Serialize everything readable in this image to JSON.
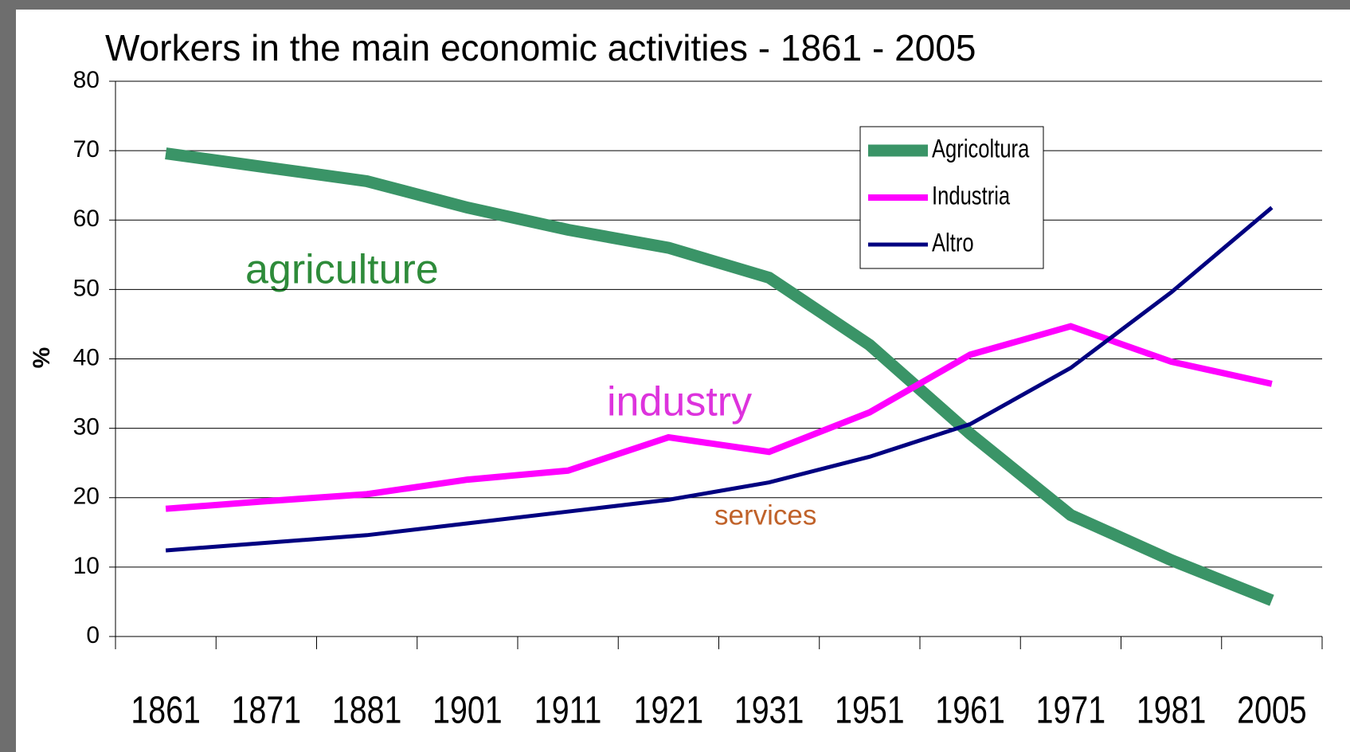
{
  "chart_data": {
    "type": "line",
    "title": "Workers in the main economic activities  -  1861 - 2005",
    "y_label": "%",
    "categories": [
      "1861",
      "1871",
      "1881",
      "1901",
      "1911",
      "1921",
      "1931",
      "1951",
      "1961",
      "1971",
      "1981",
      "2005"
    ],
    "series": [
      {
        "name": "Agricoltura",
        "color": "#3a9467",
        "values": [
          69.6,
          67.6,
          65.6,
          61.8,
          58.6,
          56,
          51.7,
          42,
          29.2,
          17.5,
          11,
          5.2
        ]
      },
      {
        "name": "Industria",
        "color": "#ff00ff",
        "values": [
          18.4,
          19.5,
          20.5,
          22.6,
          23.9,
          28.7,
          26.6,
          32.3,
          40.6,
          44.7,
          39.6,
          36.4
        ]
      },
      {
        "name": "Altro",
        "color": "#000080",
        "values": [
          12.4,
          13.5,
          14.6,
          16.3,
          18,
          19.7,
          22.2,
          25.9,
          30.6,
          38.7,
          49.6,
          61.8
        ]
      }
    ],
    "annotations": [
      "agriculture",
      "industry",
      "services"
    ],
    "ylim": [
      0,
      80
    ],
    "yticks": [
      0,
      10,
      20,
      30,
      40,
      50,
      60,
      70,
      80
    ],
    "grid": true,
    "legend": "upper right"
  }
}
